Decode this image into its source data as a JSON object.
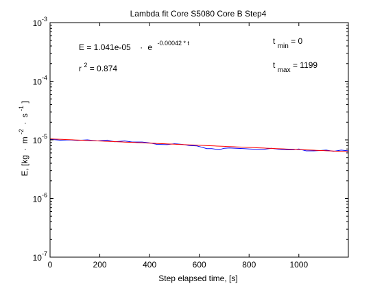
{
  "chart_data": {
    "type": "line",
    "title": "Lambda fit  Core S5080 Core B  Step4",
    "xlabel": "Step elapsed time, [s]",
    "ylabel": {
      "base": "E, [kg",
      "mid": "m",
      "mid_exp": "-2",
      "end": "s",
      "end_exp": "-1",
      "close": "]"
    },
    "xlim": [
      0,
      1199
    ],
    "ylim": [
      1e-07,
      0.001
    ],
    "yscale": "log",
    "grid": false,
    "x_ticks": [
      {
        "value": 0,
        "label": "0"
      },
      {
        "value": 200,
        "label": "200"
      },
      {
        "value": 400,
        "label": "400"
      },
      {
        "value": 600,
        "label": "600"
      },
      {
        "value": 800,
        "label": "800"
      },
      {
        "value": 1000,
        "label": "1000"
      }
    ],
    "y_ticks": [
      {
        "value": 1e-07,
        "base": "10",
        "exp": "-7"
      },
      {
        "value": 1e-06,
        "base": "10",
        "exp": "-6"
      },
      {
        "value": 1e-05,
        "base": "10",
        "exp": "-5"
      },
      {
        "value": 0.0001,
        "base": "10",
        "exp": "-4"
      },
      {
        "value": 0.001,
        "base": "10",
        "exp": "-3"
      }
    ],
    "annotations": {
      "equation": {
        "lhs": "E = 1.041e-05",
        "op": "·",
        "base": "e",
        "exp": "-0.00042 * t"
      },
      "r2": {
        "base": "r",
        "exp": "2",
        "rest": " = 0.874"
      },
      "tmin": {
        "base": "t",
        "sub": "min",
        "rest": " = 0"
      },
      "tmax": {
        "base": "t",
        "sub": "max",
        "rest": " = 1199"
      }
    },
    "series": [
      {
        "color": "#0000ff",
        "x": [
          0,
          40,
          80,
          110,
          150,
          190,
          230,
          260,
          300,
          330,
          370,
          400,
          430,
          470,
          500,
          530,
          560,
          590,
          610,
          630,
          650,
          680,
          700,
          720,
          750,
          780,
          800,
          830,
          860,
          890,
          920,
          950,
          980,
          1000,
          1030,
          1060,
          1090,
          1110,
          1140,
          1170,
          1199
        ],
        "y": [
          1.02e-05,
          9.9e-06,
          1e-05,
          9.8e-06,
          1e-05,
          9.6e-06,
          9.9e-06,
          9.3e-06,
          9.6e-06,
          9.2e-06,
          9.2e-06,
          8.9e-06,
          8.4e-06,
          8.3e-06,
          8.6e-06,
          8.4e-06,
          8e-06,
          7.9e-06,
          7.5e-06,
          7.1e-06,
          7.1e-06,
          6.8e-06,
          7.2e-06,
          7.3e-06,
          7.2e-06,
          7.1e-06,
          7e-06,
          6.9e-06,
          6.9e-06,
          7.2e-06,
          6.9e-06,
          6.8e-06,
          6.8e-06,
          7e-06,
          6.5e-06,
          6.5e-06,
          6.6e-06,
          6.7e-06,
          6.4e-06,
          6.7e-06,
          6.5e-06
        ]
      },
      {
        "color": "#ff0000",
        "fit": {
          "a": 1.041e-05,
          "k": -0.00042
        }
      }
    ]
  }
}
